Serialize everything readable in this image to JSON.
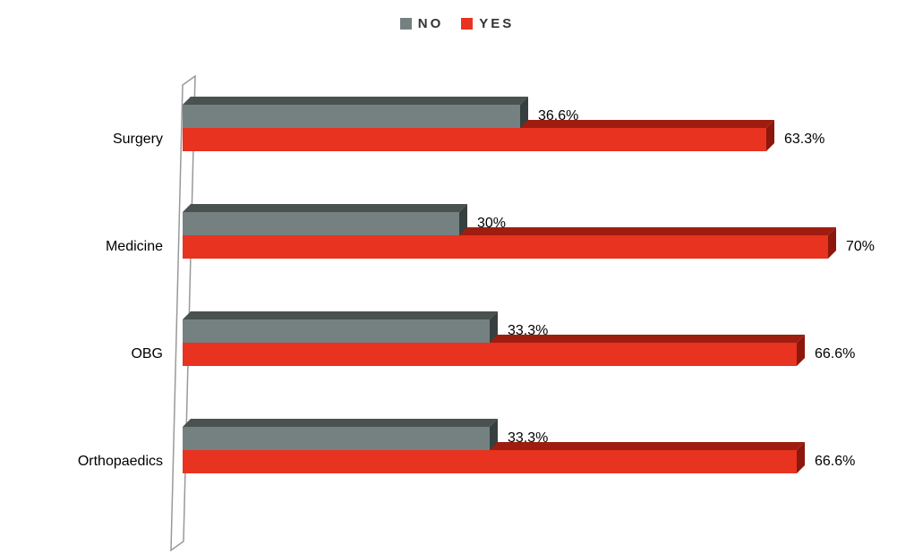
{
  "chart_data": {
    "type": "bar",
    "orientation": "horizontal",
    "style": "3d",
    "title": "",
    "xlabel": "",
    "ylabel": "",
    "xlim": [
      0,
      75
    ],
    "grid": false,
    "legend_position": "top-center",
    "categories": [
      "Surgery",
      "Medicine",
      "OBG",
      "Orthopaedics"
    ],
    "series": [
      {
        "name": "NO",
        "color": "#758181",
        "color_top": "#49524f",
        "color_end": "#37403e",
        "values": [
          36.6,
          30,
          33.3,
          33.3
        ],
        "labels": [
          "36.6%",
          "30%",
          "33.3%",
          "33.3%"
        ]
      },
      {
        "name": "YES",
        "color": "#e7331f",
        "color_top": "#9f1d10",
        "color_end": "#8c170c",
        "values": [
          63.3,
          70,
          66.6,
          66.6
        ],
        "labels": [
          "63.3%",
          "70%",
          "66.6%",
          "66.6%"
        ]
      }
    ]
  },
  "wall": {
    "stroke_color": "#999999",
    "fill_color": "#ffffff"
  }
}
